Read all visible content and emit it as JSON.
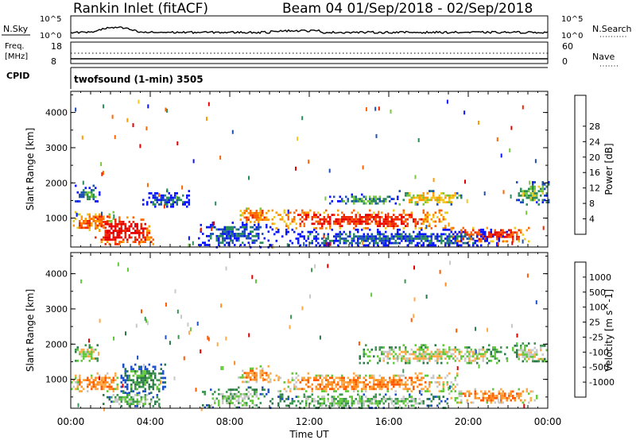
{
  "header": {
    "station": "Rankin Inlet (fitACF)",
    "beam_range": "Beam 04  01/Sep/2018 - 02/Sep/2018"
  },
  "nsky_panel": {
    "left_label": "N.Sky",
    "right_label": "N.Search",
    "tick_top": "10^5",
    "tick_bottom": "10^0",
    "right_tick_top": "10^5",
    "right_tick_bottom": "10^0"
  },
  "freq_panel": {
    "label_line1": "Freq.",
    "label_line2": "[MHz]",
    "tick_top": "18",
    "tick_bottom": "8",
    "right_label": "Nave",
    "right_tick_top": "60",
    "right_tick_bottom": "0"
  },
  "cpid_panel": {
    "label": "CPID",
    "text": "twofsound (1-min) 3505"
  },
  "chart_data": [
    {
      "type": "heatmap",
      "name": "power",
      "xlabel": "",
      "ylabel": "Slant Range [km]",
      "x_ticks": [
        "00:00",
        "04:00",
        "08:00",
        "12:00",
        "16:00",
        "20:00",
        "00:00"
      ],
      "y_ticks": [
        "1000",
        "2000",
        "3000",
        "4000"
      ],
      "colorbar_label": "Power [dB]",
      "colorbar_ticks": [
        "4",
        "8",
        "12",
        "16",
        "20",
        "24",
        "28"
      ],
      "colors": [
        "#0a14ff",
        "#1e50b4",
        "#2a8c5a",
        "#78c83c",
        "#f0c81e",
        "#ff9b00",
        "#ff6400",
        "#f02800",
        "#e60000"
      ],
      "xlim_hours": [
        0,
        24
      ],
      "ylim_km": [
        180,
        4600
      ],
      "regions": [
        {
          "t0": 0.0,
          "t1": 2.2,
          "r0": 650,
          "r1": 1200,
          "level": 6
        },
        {
          "t0": 1.2,
          "t1": 4.2,
          "r0": 250,
          "r1": 1050,
          "level": 8
        },
        {
          "t0": 0.2,
          "t1": 1.5,
          "r0": 1500,
          "r1": 1950,
          "level": 2
        },
        {
          "t0": 3.5,
          "t1": 6.0,
          "r0": 1300,
          "r1": 1800,
          "level": 1
        },
        {
          "t0": 6.4,
          "t1": 10.2,
          "r0": 200,
          "r1": 900,
          "level": 1
        },
        {
          "t0": 8.4,
          "t1": 10.0,
          "r0": 900,
          "r1": 1300,
          "level": 6
        },
        {
          "t0": 10.0,
          "t1": 19.0,
          "r0": 700,
          "r1": 1250,
          "level": 7
        },
        {
          "t0": 13.0,
          "t1": 16.5,
          "r0": 1400,
          "r1": 1700,
          "level": 2
        },
        {
          "t0": 16.5,
          "t1": 19.8,
          "r0": 1400,
          "r1": 1800,
          "level": 4
        },
        {
          "t0": 19.0,
          "t1": 23.2,
          "r0": 350,
          "r1": 750,
          "level": 7
        },
        {
          "t0": 22.4,
          "t1": 24.0,
          "r0": 1400,
          "r1": 2050,
          "level": 3
        },
        {
          "t0": 10.0,
          "t1": 22.0,
          "r0": 200,
          "r1": 700,
          "level": 1
        }
      ]
    },
    {
      "type": "heatmap",
      "name": "velocity",
      "xlabel": "Time UT",
      "ylabel": "Slant Range [km]",
      "x_ticks": [
        "00:00",
        "04:00",
        "08:00",
        "12:00",
        "16:00",
        "20:00",
        "00:00"
      ],
      "y_ticks": [
        "1000",
        "2000",
        "3000",
        "4000"
      ],
      "colorbar_label": "Velocity [m s^-1]",
      "colorbar_ticks": [
        "1000",
        "500",
        "100",
        "25",
        "-25",
        "-100",
        "-500",
        "-1000"
      ],
      "colors": [
        "#1e50c8",
        "#2a7848",
        "#3c9650",
        "#64c83c",
        "#c8c8c8",
        "#ffaa46",
        "#ff8c1e",
        "#ff5a00",
        "#e60000"
      ],
      "xlim_hours": [
        0,
        24
      ],
      "ylim_km": [
        180,
        4600
      ],
      "regions": [
        {
          "t0": 0.0,
          "t1": 2.5,
          "r0": 650,
          "r1": 1200,
          "level": 6
        },
        {
          "t0": 0.0,
          "t1": 1.4,
          "r0": 1500,
          "r1": 2000,
          "level": 4
        },
        {
          "t0": 2.5,
          "t1": 4.8,
          "r0": 600,
          "r1": 1450,
          "level": 2
        },
        {
          "t0": 1.6,
          "t1": 4.5,
          "r0": 250,
          "r1": 650,
          "level": 3
        },
        {
          "t0": 6.5,
          "t1": 10.0,
          "r0": 200,
          "r1": 800,
          "level": 3
        },
        {
          "t0": 8.4,
          "t1": 10.2,
          "r0": 900,
          "r1": 1400,
          "level": 6
        },
        {
          "t0": 10.0,
          "t1": 19.5,
          "r0": 650,
          "r1": 1200,
          "level": 6
        },
        {
          "t0": 14.5,
          "t1": 22.0,
          "r0": 1450,
          "r1": 2000,
          "level": 4
        },
        {
          "t0": 19.0,
          "t1": 23.5,
          "r0": 350,
          "r1": 750,
          "level": 6
        },
        {
          "t0": 22.2,
          "t1": 24.0,
          "r0": 1500,
          "r1": 2050,
          "level": 4
        },
        {
          "t0": 10.0,
          "t1": 19.0,
          "r0": 200,
          "r1": 600,
          "level": 3
        }
      ]
    }
  ]
}
